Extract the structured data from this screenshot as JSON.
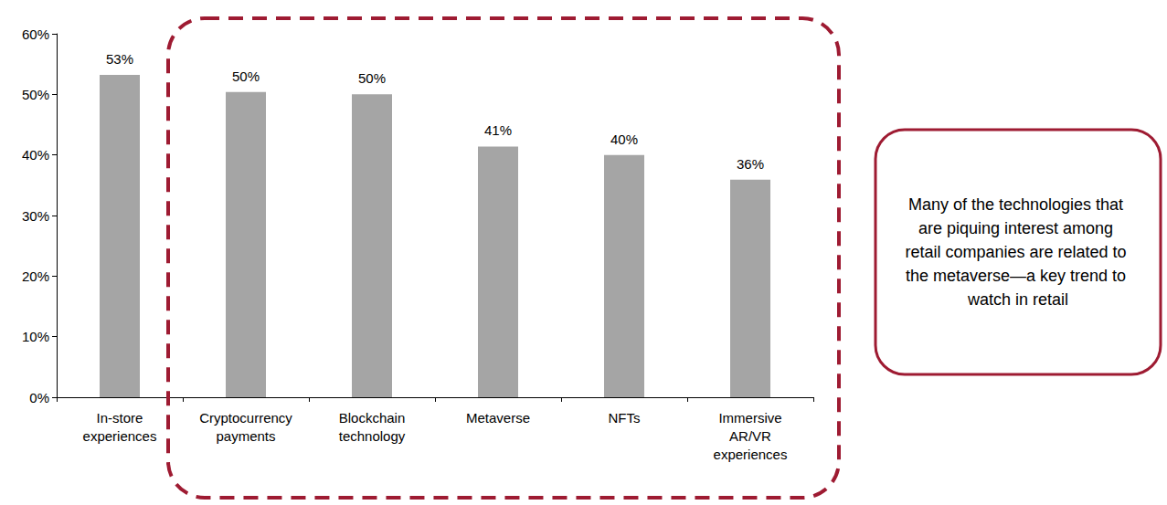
{
  "chart_data": {
    "type": "bar",
    "categories": [
      "In-store experiences",
      "Cryptocurrency payments",
      "Blockchain technology",
      "Metaverse",
      "NFTs",
      "Immersive AR/VR experiences"
    ],
    "values": [
      53.2,
      50.4,
      50.0,
      41.4,
      40.0,
      35.9
    ],
    "value_labels": [
      "53%",
      "50%",
      "50%",
      "41%",
      "40%",
      "36%"
    ],
    "data_labels": true,
    "color": "#a5a5a5",
    "ylim": [
      0,
      60
    ],
    "yticks": [
      {
        "value": 0,
        "label": "0%"
      },
      {
        "value": 10,
        "label": "10%"
      },
      {
        "value": 20,
        "label": "20%"
      },
      {
        "value": 30,
        "label": "30%"
      },
      {
        "value": 40,
        "label": "40%"
      },
      {
        "value": 50,
        "label": "50%"
      },
      {
        "value": 60,
        "label": "60%"
      }
    ],
    "grid": false,
    "annotation": "Many of the technologies that are piquing interest among retail companies are related to the metaverse—a key trend to watch in retail"
  }
}
